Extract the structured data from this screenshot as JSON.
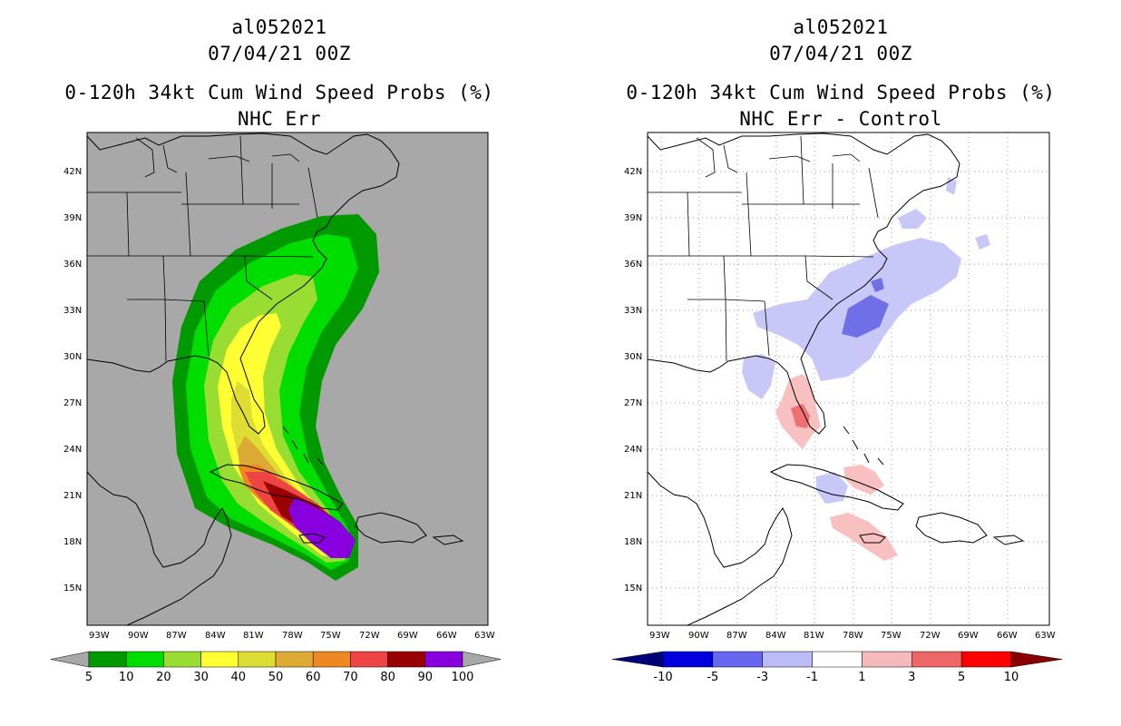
{
  "panels": [
    {
      "storm_id": "al052021",
      "date": "07/04/21 00Z",
      "title": "0-120h 34kt Cum Wind Speed Probs (%)",
      "subtitle": "NHC Err",
      "legend_labels": [
        "5",
        "10",
        "20",
        "30",
        "40",
        "50",
        "60",
        "70",
        "80",
        "90",
        "100"
      ],
      "legend_colors": [
        "#009900",
        "#00dd00",
        "#99dd33",
        "#ffff33",
        "#dddd33",
        "#ddaa33",
        "#ee8822",
        "#ee4444",
        "#990000",
        "#8800dd"
      ]
    },
    {
      "storm_id": "al052021",
      "date": "07/04/21 00Z",
      "title": "0-120h 34kt Cum Wind Speed Probs (%)",
      "subtitle": "NHC Err - Control",
      "legend_labels": [
        "-10",
        "-5",
        "-3",
        "-1",
        "1",
        "3",
        "5",
        "10"
      ],
      "legend_colors": [
        "#0000dd",
        "#6666ee",
        "#bbbbf5",
        "#ffffff",
        "#f5bbbb",
        "#ee6666",
        "#ff0000"
      ]
    }
  ],
  "axes": {
    "lat_labels": [
      "42N",
      "39N",
      "36N",
      "33N",
      "30N",
      "27N",
      "24N",
      "21N",
      "18N",
      "15N"
    ],
    "lon_labels": [
      "93W",
      "90W",
      "87W",
      "84W",
      "81W",
      "78W",
      "75W",
      "72W",
      "69W",
      "66W",
      "63W"
    ]
  },
  "colors": {
    "land_grey": "#a8a8a8",
    "grid": "#888888"
  }
}
